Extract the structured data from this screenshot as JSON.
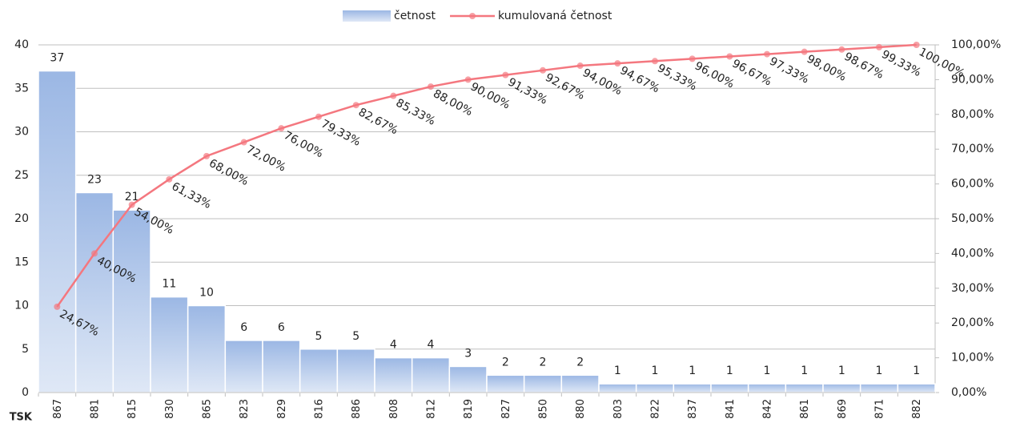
{
  "chart_data": {
    "type": "bar",
    "x_label": "TSK",
    "categories": [
      "867",
      "881",
      "815",
      "830",
      "865",
      "823",
      "829",
      "816",
      "886",
      "808",
      "812",
      "819",
      "827",
      "850",
      "880",
      "803",
      "822",
      "837",
      "841",
      "842",
      "861",
      "869",
      "871",
      "882"
    ],
    "series": [
      {
        "name": "četnost",
        "type": "bar",
        "color": "#9bb7e4",
        "values": [
          37,
          23,
          21,
          11,
          10,
          6,
          6,
          5,
          5,
          4,
          4,
          3,
          2,
          2,
          2,
          1,
          1,
          1,
          1,
          1,
          1,
          1,
          1,
          1
        ]
      },
      {
        "name": "kumulovaná četnost",
        "type": "line",
        "color": "#f4777f",
        "axis": "y2",
        "values": [
          24.67,
          40,
          54,
          61.33,
          68,
          72,
          76,
          79.33,
          82.67,
          85.33,
          88,
          90,
          91.33,
          92.67,
          94,
          94.67,
          95.33,
          96,
          96.67,
          97.33,
          98,
          98.67,
          99.33,
          100
        ],
        "value_labels": [
          "24,67%",
          "40,00%",
          "54,00%",
          "61,33%",
          "68,00%",
          "72,00%",
          "76,00%",
          "79,33%",
          "82,67%",
          "85,33%",
          "88,00%",
          "90,00%",
          "91,33%",
          "92,67%",
          "94,00%",
          "94,67%",
          "95,33%",
          "96,00%",
          "96,67%",
          "97,33%",
          "98,00%",
          "98,67%",
          "99,33%",
          "100,00%"
        ]
      }
    ],
    "ylim": [
      0,
      40
    ],
    "yticks": [
      0,
      5,
      10,
      15,
      20,
      25,
      30,
      35,
      40
    ],
    "y2lim": [
      0,
      100
    ],
    "y2ticks": [
      {
        "value": 0,
        "label": "0,00%"
      },
      {
        "value": 10,
        "label": "10,00%"
      },
      {
        "value": 20,
        "label": "20,00%"
      },
      {
        "value": 30,
        "label": "30,00%"
      },
      {
        "value": 40,
        "label": "40,00%"
      },
      {
        "value": 50,
        "label": "50,00%"
      },
      {
        "value": 60,
        "label": "60,00%"
      },
      {
        "value": 70,
        "label": "70,00%"
      },
      {
        "value": 80,
        "label": "80,00%"
      },
      {
        "value": 90,
        "label": "90,00%"
      },
      {
        "value": 100,
        "label": "100,00%"
      }
    ],
    "grid": true,
    "legend": "top"
  }
}
